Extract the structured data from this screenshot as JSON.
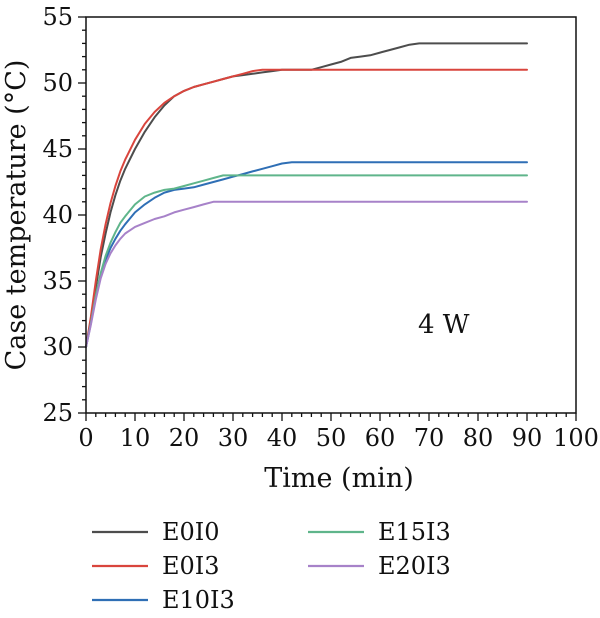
{
  "chart_data": {
    "type": "line",
    "xlabel": "Time (min)",
    "ylabel": "Case temperature (°C)",
    "annotation": "4 W",
    "xlim": [
      0,
      100
    ],
    "ylim": [
      25,
      55
    ],
    "xticks": [
      0,
      10,
      20,
      30,
      40,
      50,
      60,
      70,
      80,
      90,
      100
    ],
    "yticks": [
      25,
      30,
      35,
      40,
      45,
      50,
      55
    ],
    "grid": false,
    "legend_position": "bottom",
    "series": [
      {
        "name": "E0I0",
        "color": "#4d4d4d",
        "x": [
          0,
          1,
          2,
          3,
          4,
          5,
          6,
          7,
          8,
          10,
          12,
          14,
          16,
          18,
          20,
          22,
          24,
          26,
          28,
          30,
          32,
          34,
          36,
          38,
          40,
          42,
          44,
          46,
          48,
          50,
          52,
          54,
          56,
          58,
          60,
          62,
          64,
          66,
          68,
          70,
          80,
          90
        ],
        "y": [
          30,
          32,
          34.5,
          36.8,
          38.6,
          40.2,
          41.5,
          42.6,
          43.5,
          45,
          46.3,
          47.4,
          48.3,
          49,
          49.4,
          49.7,
          49.9,
          50.1,
          50.3,
          50.5,
          50.6,
          50.7,
          50.8,
          50.9,
          51,
          51,
          51,
          51,
          51.2,
          51.4,
          51.6,
          51.9,
          52,
          52.1,
          52.3,
          52.5,
          52.7,
          52.9,
          53,
          53,
          53,
          53
        ]
      },
      {
        "name": "E0I3",
        "color": "#d9453d",
        "x": [
          0,
          1,
          2,
          3,
          4,
          5,
          6,
          7,
          8,
          10,
          12,
          14,
          16,
          18,
          20,
          22,
          24,
          26,
          28,
          30,
          32,
          34,
          36,
          40,
          50,
          60,
          70,
          80,
          90
        ],
        "y": [
          30,
          32.3,
          35,
          37.4,
          39.3,
          40.9,
          42.2,
          43.3,
          44.2,
          45.7,
          46.9,
          47.8,
          48.5,
          49,
          49.4,
          49.7,
          49.9,
          50.1,
          50.3,
          50.5,
          50.7,
          50.9,
          51,
          51,
          51,
          51,
          51,
          51,
          51
        ]
      },
      {
        "name": "E10I3",
        "color": "#2f6fb5",
        "x": [
          0,
          1,
          2,
          3,
          4,
          5,
          6,
          7,
          8,
          10,
          12,
          14,
          16,
          18,
          20,
          22,
          24,
          26,
          28,
          30,
          32,
          34,
          36,
          38,
          40,
          42,
          50,
          60,
          70,
          80,
          90
        ],
        "y": [
          30,
          31.8,
          33.8,
          35.4,
          36.6,
          37.5,
          38.2,
          38.8,
          39.3,
          40.2,
          40.8,
          41.3,
          41.7,
          41.9,
          42,
          42.1,
          42.3,
          42.5,
          42.7,
          42.9,
          43.1,
          43.3,
          43.5,
          43.7,
          43.9,
          44,
          44,
          44,
          44,
          44,
          44
        ]
      },
      {
        "name": "E15I3",
        "color": "#5fb58b",
        "x": [
          0,
          1,
          2,
          3,
          4,
          5,
          6,
          7,
          8,
          10,
          12,
          14,
          16,
          18,
          20,
          22,
          24,
          26,
          28,
          30,
          40,
          50,
          60,
          70,
          80,
          90
        ],
        "y": [
          30,
          31.8,
          33.9,
          35.6,
          36.9,
          37.9,
          38.7,
          39.4,
          39.9,
          40.8,
          41.4,
          41.7,
          41.9,
          42,
          42.2,
          42.4,
          42.6,
          42.8,
          43,
          43,
          43,
          43,
          43,
          43,
          43,
          43
        ]
      },
      {
        "name": "E20I3",
        "color": "#a782c9",
        "x": [
          0,
          1,
          2,
          3,
          4,
          5,
          6,
          7,
          8,
          10,
          12,
          14,
          16,
          18,
          20,
          22,
          24,
          26,
          30,
          40,
          50,
          60,
          70,
          80,
          90
        ],
        "y": [
          30,
          31.7,
          33.6,
          35.2,
          36.3,
          37.1,
          37.7,
          38.2,
          38.6,
          39.1,
          39.4,
          39.7,
          39.9,
          40.2,
          40.4,
          40.6,
          40.8,
          41,
          41,
          41,
          41,
          41,
          41,
          41,
          41
        ]
      }
    ]
  }
}
